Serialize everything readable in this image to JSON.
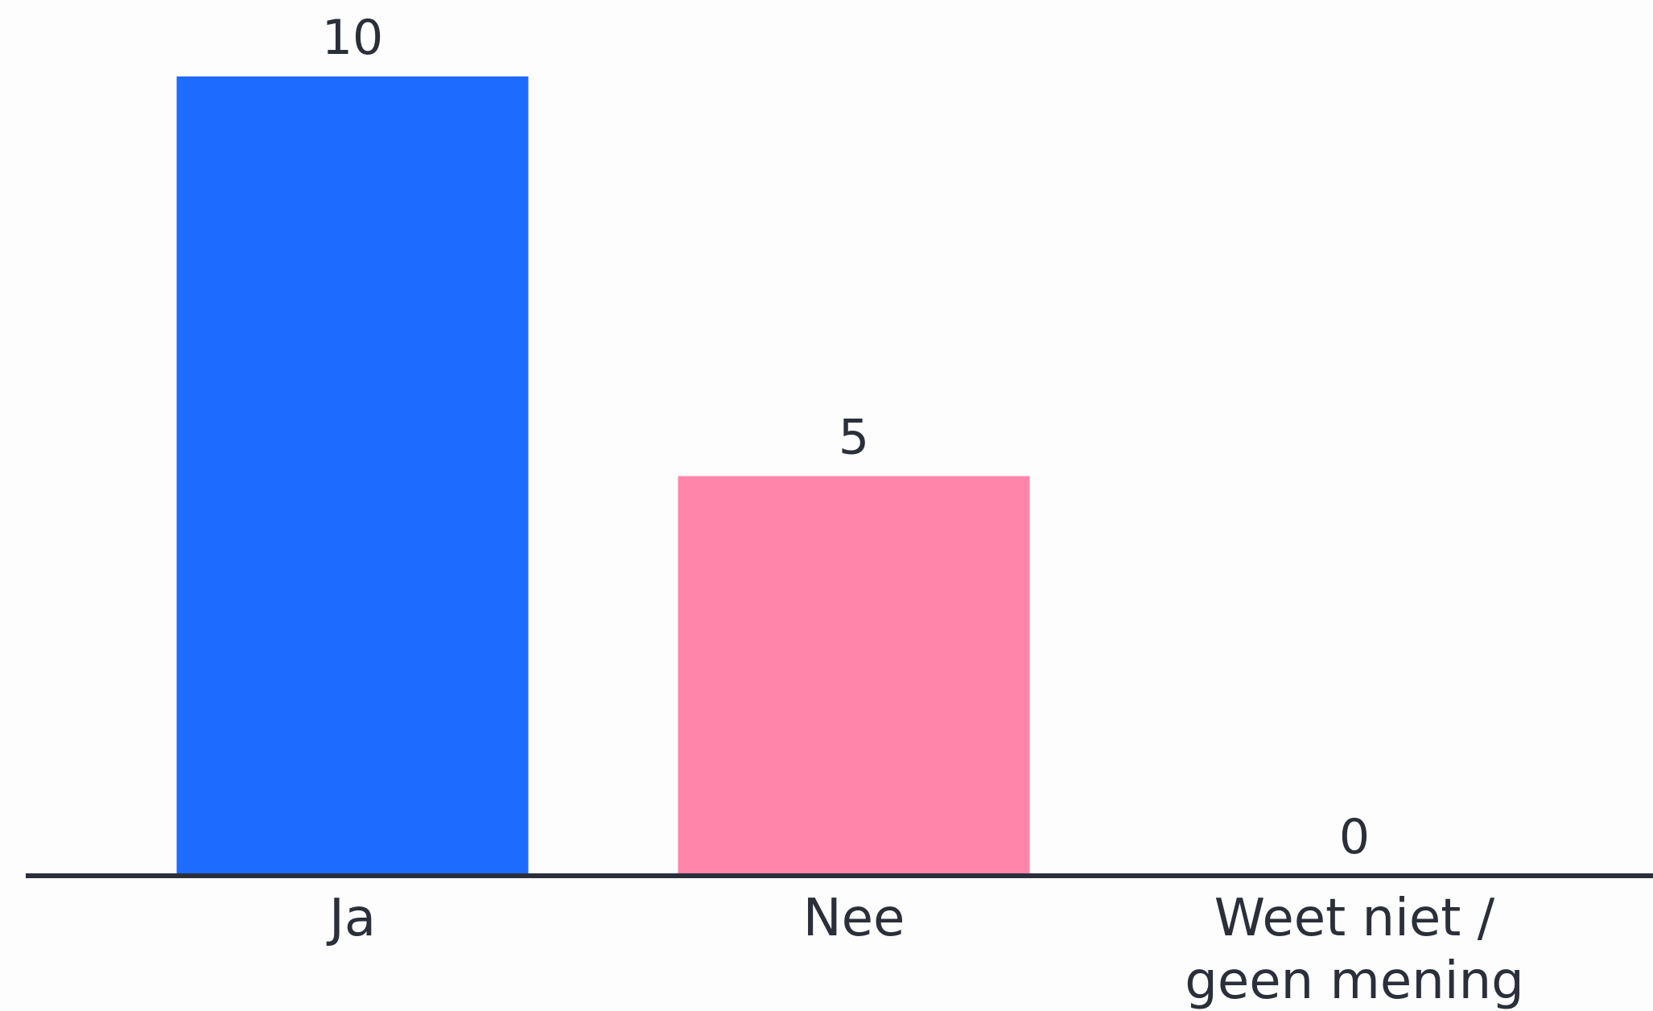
{
  "chart_data": {
    "type": "bar",
    "categories": [
      "Ja",
      "Nee",
      "Weet niet / geen mening"
    ],
    "category_lines": [
      [
        "Ja"
      ],
      [
        "Nee"
      ],
      [
        "Weet niet /",
        "geen mening"
      ]
    ],
    "values": [
      10,
      5,
      0
    ],
    "data_labels": [
      "10",
      "5",
      "0"
    ],
    "colors": [
      "#1e6bff",
      "#ff85ab",
      "#2b2f3b"
    ],
    "axis_color": "#2b2f3b",
    "ylim": [
      0,
      10
    ],
    "grid": false,
    "title": "",
    "xlabel": "",
    "ylabel": ""
  }
}
